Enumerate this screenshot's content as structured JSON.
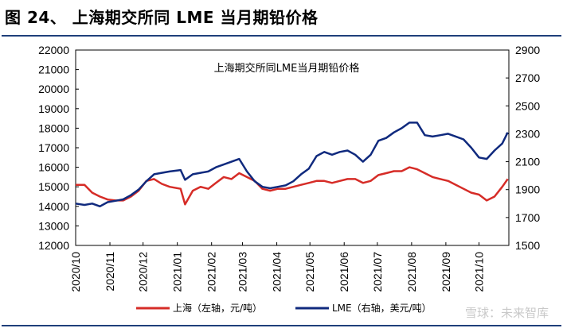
{
  "figure_title": "图 24、 上海期交所同 LME 当月期铅价格",
  "watermark": "雪球：未来智库",
  "colors": {
    "shanghai": "#d62c27",
    "lme": "#102a7e",
    "rule": "#1f3f7a"
  },
  "chart_data": {
    "type": "line",
    "title": "上海期交所同LME当月期铅价格",
    "x_ticks": [
      "2020/10",
      "2020/11",
      "2020/12",
      "2021/01",
      "2021/02",
      "2021/03",
      "2021/04",
      "2021/05",
      "2021/06",
      "2021/07",
      "2021/08",
      "2021/09",
      "2021/10"
    ],
    "left_axis": {
      "ylim": [
        12000,
        22000
      ],
      "ticks": [
        "12000",
        "13000",
        "14000",
        "15000",
        "16000",
        "17000",
        "18000",
        "19000",
        "20000",
        "21000",
        "22000"
      ]
    },
    "right_axis": {
      "ylim": [
        1500,
        2900
      ],
      "ticks": [
        "1500",
        "1700",
        "1900",
        "2100",
        "2300",
        "2500",
        "2700",
        "2900"
      ]
    },
    "legend": {
      "placement": "bottom"
    },
    "grid": false,
    "series": [
      {
        "name": "上海（左轴，元/吨）",
        "axis": "left",
        "points": [
          [
            "2020/10/01",
            15100
          ],
          [
            "2020/10/09",
            15100
          ],
          [
            "2020/10/16",
            14700
          ],
          [
            "2020/10/23",
            14500
          ],
          [
            "2020/10/30",
            14350
          ],
          [
            "2020/11/06",
            14300
          ],
          [
            "2020/11/13",
            14300
          ],
          [
            "2020/11/20",
            14500
          ],
          [
            "2020/11/27",
            14800
          ],
          [
            "2020/12/04",
            15300
          ],
          [
            "2020/12/11",
            15400
          ],
          [
            "2020/12/18",
            15150
          ],
          [
            "2020/12/25",
            15000
          ],
          [
            "2021/01/04",
            14900
          ],
          [
            "2021/01/08",
            14100
          ],
          [
            "2021/01/15",
            14800
          ],
          [
            "2021/01/22",
            15000
          ],
          [
            "2021/01/29",
            14900
          ],
          [
            "2021/02/05",
            15200
          ],
          [
            "2021/02/12",
            15500
          ],
          [
            "2021/02/19",
            15400
          ],
          [
            "2021/02/26",
            15700
          ],
          [
            "2021/03/05",
            15500
          ],
          [
            "2021/03/12",
            15300
          ],
          [
            "2021/03/19",
            14900
          ],
          [
            "2021/03/26",
            14800
          ],
          [
            "2021/04/02",
            14900
          ],
          [
            "2021/04/09",
            14900
          ],
          [
            "2021/04/16",
            15000
          ],
          [
            "2021/04/23",
            15100
          ],
          [
            "2021/04/30",
            15200
          ],
          [
            "2021/05/07",
            15300
          ],
          [
            "2021/05/14",
            15300
          ],
          [
            "2021/05/21",
            15200
          ],
          [
            "2021/05/28",
            15300
          ],
          [
            "2021/06/04",
            15400
          ],
          [
            "2021/06/11",
            15400
          ],
          [
            "2021/06/18",
            15200
          ],
          [
            "2021/06/25",
            15300
          ],
          [
            "2021/07/02",
            15600
          ],
          [
            "2021/07/09",
            15700
          ],
          [
            "2021/07/16",
            15800
          ],
          [
            "2021/07/23",
            15800
          ],
          [
            "2021/07/30",
            16000
          ],
          [
            "2021/08/06",
            15900
          ],
          [
            "2021/08/13",
            15700
          ],
          [
            "2021/08/20",
            15500
          ],
          [
            "2021/08/27",
            15400
          ],
          [
            "2021/09/03",
            15300
          ],
          [
            "2021/09/10",
            15100
          ],
          [
            "2021/09/17",
            14900
          ],
          [
            "2021/09/24",
            14700
          ],
          [
            "2021/10/01",
            14600
          ],
          [
            "2021/10/08",
            14300
          ],
          [
            "2021/10/15",
            14500
          ],
          [
            "2021/10/22",
            15000
          ],
          [
            "2021/10/27",
            15400
          ]
        ]
      },
      {
        "name": "LME（右轴，美元/吨）",
        "axis": "right",
        "points": [
          [
            "2020/10/01",
            1800
          ],
          [
            "2020/10/09",
            1790
          ],
          [
            "2020/10/16",
            1800
          ],
          [
            "2020/10/23",
            1780
          ],
          [
            "2020/10/30",
            1810
          ],
          [
            "2020/11/06",
            1820
          ],
          [
            "2020/11/13",
            1830
          ],
          [
            "2020/11/20",
            1860
          ],
          [
            "2020/11/27",
            1900
          ],
          [
            "2020/12/04",
            1960
          ],
          [
            "2020/12/11",
            2010
          ],
          [
            "2020/12/18",
            2020
          ],
          [
            "2020/12/25",
            2030
          ],
          [
            "2021/01/04",
            2040
          ],
          [
            "2021/01/08",
            1970
          ],
          [
            "2021/01/15",
            2010
          ],
          [
            "2021/01/22",
            2020
          ],
          [
            "2021/01/29",
            2030
          ],
          [
            "2021/02/05",
            2060
          ],
          [
            "2021/02/12",
            2080
          ],
          [
            "2021/02/19",
            2100
          ],
          [
            "2021/02/26",
            2120
          ],
          [
            "2021/03/05",
            2030
          ],
          [
            "2021/03/12",
            1960
          ],
          [
            "2021/03/19",
            1920
          ],
          [
            "2021/03/26",
            1910
          ],
          [
            "2021/04/02",
            1920
          ],
          [
            "2021/04/09",
            1930
          ],
          [
            "2021/04/16",
            1960
          ],
          [
            "2021/04/23",
            2010
          ],
          [
            "2021/04/30",
            2050
          ],
          [
            "2021/05/07",
            2140
          ],
          [
            "2021/05/14",
            2170
          ],
          [
            "2021/05/21",
            2150
          ],
          [
            "2021/05/28",
            2170
          ],
          [
            "2021/06/04",
            2180
          ],
          [
            "2021/06/11",
            2150
          ],
          [
            "2021/06/18",
            2100
          ],
          [
            "2021/06/25",
            2150
          ],
          [
            "2021/07/02",
            2250
          ],
          [
            "2021/07/09",
            2270
          ],
          [
            "2021/07/16",
            2310
          ],
          [
            "2021/07/23",
            2340
          ],
          [
            "2021/07/30",
            2380
          ],
          [
            "2021/08/06",
            2380
          ],
          [
            "2021/08/13",
            2290
          ],
          [
            "2021/08/20",
            2280
          ],
          [
            "2021/08/27",
            2290
          ],
          [
            "2021/09/03",
            2300
          ],
          [
            "2021/09/10",
            2280
          ],
          [
            "2021/09/17",
            2260
          ],
          [
            "2021/09/24",
            2200
          ],
          [
            "2021/10/01",
            2130
          ],
          [
            "2021/10/08",
            2120
          ],
          [
            "2021/10/15",
            2180
          ],
          [
            "2021/10/22",
            2230
          ],
          [
            "2021/10/27",
            2310
          ]
        ]
      }
    ]
  }
}
